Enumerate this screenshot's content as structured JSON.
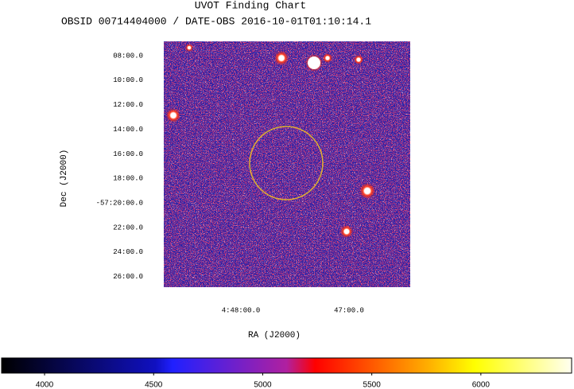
{
  "title": "UVOT Finding Chart",
  "subtitle": "OBSID 00714404000 / DATE-OBS 2016-10-01T01:10:14.1",
  "y_axis": {
    "label": "Dec (J2000)",
    "ticks": [
      "08:00.0",
      "10:00.0",
      "12:00.0",
      "14:00.0",
      "16:00.0",
      "18:00.0",
      "-57:20:00.0",
      "22:00.0",
      "24:00.0",
      "26:00.0"
    ]
  },
  "x_axis": {
    "label": "RA (J2000)",
    "ticks": [
      "4:48:00.0",
      "47:00.0"
    ]
  },
  "colorbar": {
    "lim": [
      3803,
      6416
    ],
    "ticks": [
      4000,
      4500,
      5000,
      5500,
      6000
    ]
  }
}
